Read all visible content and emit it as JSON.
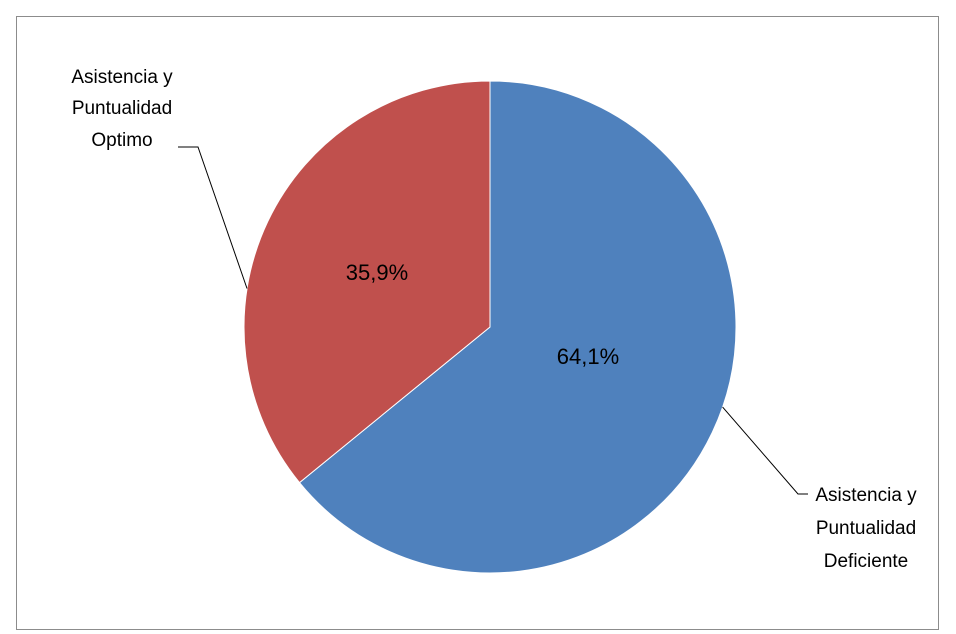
{
  "chart_data": {
    "type": "pie",
    "categories": [
      "Asistencia y Puntualidad Deficiente",
      "Asistencia y Puntualidad Optimo"
    ],
    "values": [
      64.1,
      35.9
    ],
    "value_labels": [
      "64,1%",
      "35,9%"
    ],
    "label_lines": [
      [
        "Asistencia y",
        "Puntualidad",
        "Deficiente"
      ],
      [
        "Asistencia y",
        "Puntualidad",
        "Optimo"
      ]
    ],
    "colors": [
      "#4f81bd",
      "#c0504d"
    ],
    "start_angle_deg": 0,
    "direction": "clockwise",
    "legend": "none"
  }
}
